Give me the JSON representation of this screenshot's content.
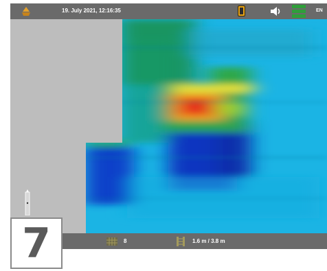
{
  "header": {
    "datetime": "19. July 2021, 12:16:35",
    "language": "EN",
    "icons": [
      "logo-icon",
      "device-icon",
      "speaker-icon",
      "battery-icon"
    ]
  },
  "footer": {
    "scan_count": "8",
    "distance": "1.6 m / 3.8 m",
    "icons": [
      "scan-count-icon",
      "distance-icon"
    ]
  },
  "step": {
    "number": "7"
  },
  "colors": {
    "bar": "#6a6a6a",
    "background": "#bdbdbd",
    "scan_base": "#18b4e6",
    "battery": "#2f9e3a",
    "device": "#e8a317",
    "logo": "#e6a22b"
  }
}
